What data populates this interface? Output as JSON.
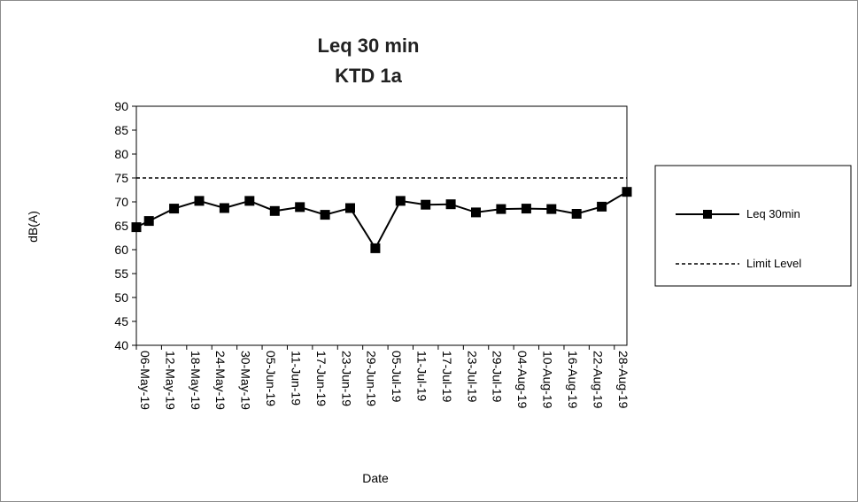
{
  "chart_data": {
    "type": "line",
    "title": [
      "Leq 30 min",
      "KTD 1a"
    ],
    "xlabel": "Date",
    "ylabel": "dB(A)",
    "ylim": [
      40,
      90
    ],
    "yticks": [
      40,
      45,
      50,
      55,
      60,
      65,
      70,
      75,
      80,
      85,
      90
    ],
    "categories": [
      "06-May-19",
      "12-May-19",
      "18-May-19",
      "24-May-19",
      "30-May-19",
      "05-Jun-19",
      "11-Jun-19",
      "17-Jun-19",
      "23-Jun-19",
      "29-Jun-19",
      "05-Jul-19",
      "11-Jul-19",
      "17-Jul-19",
      "23-Jul-19",
      "29-Jul-19",
      "04-Aug-19",
      "10-Aug-19",
      "16-Aug-19",
      "22-Aug-19",
      "28-Aug-19"
    ],
    "series": [
      {
        "name": "Leq 30min",
        "color": "#000000",
        "marker": "square",
        "x": [
          "06-May-19",
          "09-May-19",
          "15-May-19",
          "21-May-19",
          "27-May-19",
          "02-Jun-19",
          "08-Jun-19",
          "14-Jun-19",
          "20-Jun-19",
          "26-Jun-19",
          "02-Jul-19",
          "08-Jul-19",
          "14-Jul-19",
          "20-Jul-19",
          "26-Jul-19",
          "01-Aug-19",
          "07-Aug-19",
          "13-Aug-19",
          "19-Aug-19",
          "25-Aug-19",
          "31-Aug-19"
        ],
        "values": [
          64.7,
          66.0,
          68.6,
          70.2,
          68.7,
          70.2,
          68.1,
          68.9,
          67.3,
          68.7,
          60.3,
          70.2,
          69.4,
          69.5,
          67.8,
          68.5,
          68.6,
          68.5,
          67.5,
          69.0,
          72.1
        ]
      }
    ],
    "limit": {
      "name": "Limit Level",
      "value": 75,
      "style": "dashed",
      "color": "#000000"
    },
    "legend": "right",
    "grid": "none"
  }
}
